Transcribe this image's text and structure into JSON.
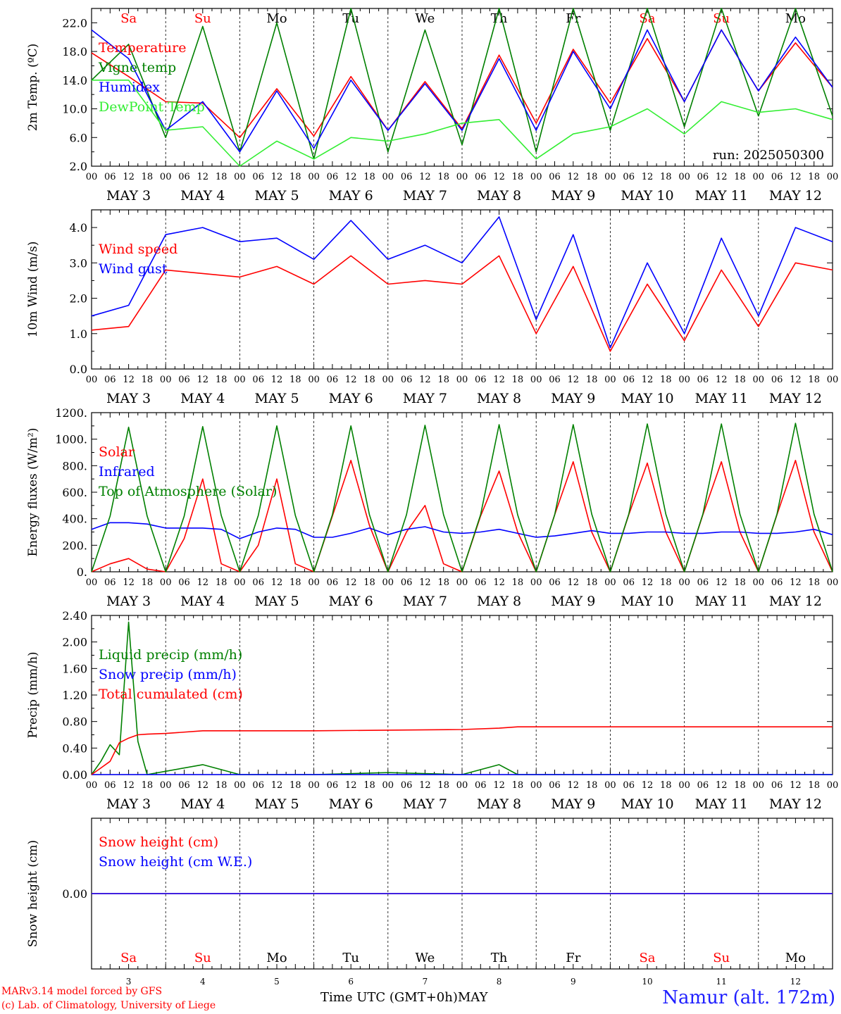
{
  "meta": {
    "credit_line1": "MARv3.14 model forced by GFS",
    "credit_line2": "(c) Lab. of Climatology, University of Liege",
    "x_title": "Time UTC (GMT+0h)",
    "month": "MAY",
    "station": "Namur (alt. 172m)",
    "run": "run: 2025050300"
  },
  "days": {
    "weekdays": [
      "Sa",
      "Su",
      "Mo",
      "Tu",
      "We",
      "Th",
      "Fr",
      "Sa",
      "Su",
      "Mo"
    ],
    "weekday_colors": [
      "#ff0000",
      "#ff0000",
      "#000000",
      "#000000",
      "#000000",
      "#000000",
      "#000000",
      "#ff0000",
      "#ff0000",
      "#000000"
    ],
    "day_labels": [
      "MAY  3",
      "MAY  4",
      "MAY  5",
      "MAY  6",
      "MAY  7",
      "MAY  8",
      "MAY  9",
      "MAY 10",
      "MAY 11",
      "MAY 12"
    ],
    "day_numbers": [
      "3",
      "4",
      "5",
      "6",
      "7",
      "8",
      "9",
      "10",
      "11",
      "12"
    ],
    "hour_ticks": [
      "00",
      "06",
      "12",
      "18"
    ],
    "final_tick": "00"
  },
  "colors": {
    "red": "#ff0000",
    "green": "#008000",
    "blue": "#0000ff",
    "lime": "#33ee33"
  },
  "chart_data": [
    {
      "type": "line",
      "ylabel": "2m Temp. (ºC)",
      "ylim": [
        2,
        24
      ],
      "yticks": [
        "2.0",
        "6.0",
        "10.0",
        "14.0",
        "18.0",
        "22.0"
      ],
      "ytick_values": [
        2,
        6,
        10,
        14,
        18,
        22
      ],
      "show_run": true,
      "show_weekdays": "top",
      "x_hours": [
        0,
        12,
        24,
        36,
        48,
        60,
        72,
        84,
        96,
        108,
        120,
        132,
        144,
        156,
        168,
        180,
        192,
        204,
        216,
        228,
        240
      ],
      "series": [
        {
          "name": "Temperature",
          "color": "#ff0000",
          "values": [
            17.8,
            14.5,
            11.0,
            10.8,
            6.0,
            12.8,
            6.2,
            14.5,
            7.0,
            13.8,
            7.2,
            17.5,
            8.0,
            18.3,
            10.8,
            19.8,
            11.0,
            21.0,
            12.5,
            19.2,
            13.0
          ]
        },
        {
          "name": "Vigne temp",
          "color": "#008000",
          "values": [
            14.0,
            19.0,
            6.0,
            21.5,
            4.0,
            22.0,
            3.0,
            24.0,
            4.0,
            21.0,
            5.0,
            24.0,
            4.0,
            24.0,
            7.0,
            24.0,
            7.5,
            24.0,
            9.0,
            24.0,
            9.0
          ]
        },
        {
          "name": "Humidex",
          "color": "#0000ff",
          "values": [
            21.0,
            17.0,
            7.0,
            11.0,
            4.0,
            12.5,
            4.5,
            14.0,
            7.0,
            13.5,
            7.0,
            17.0,
            7.0,
            18.0,
            10.0,
            21.0,
            11.0,
            21.0,
            12.5,
            20.0,
            13.0
          ]
        },
        {
          "name": "DewPoint Temp",
          "color": "#33ee33",
          "values": [
            14.0,
            14.0,
            7.0,
            7.5,
            2.0,
            5.5,
            3.0,
            6.0,
            5.5,
            6.5,
            8.0,
            8.5,
            3.0,
            6.5,
            7.5,
            10.0,
            6.5,
            11.0,
            9.5,
            10.0,
            8.5
          ]
        }
      ]
    },
    {
      "type": "line",
      "ylabel": "10m Wind (m/s)",
      "ylim": [
        0,
        4.5
      ],
      "yticks": [
        "0.0",
        "1.0",
        "2.0",
        "3.0",
        "4.0"
      ],
      "ytick_values": [
        0,
        1,
        2,
        3,
        4
      ],
      "x_hours": [
        0,
        12,
        24,
        36,
        48,
        60,
        72,
        84,
        96,
        108,
        120,
        132,
        144,
        156,
        168,
        180,
        192,
        204,
        216,
        228,
        240
      ],
      "series": [
        {
          "name": "Wind speed",
          "color": "#ff0000",
          "values": [
            1.1,
            1.2,
            2.8,
            2.7,
            2.6,
            2.9,
            2.4,
            3.2,
            2.4,
            2.5,
            2.4,
            3.2,
            1.0,
            2.9,
            0.5,
            2.4,
            0.8,
            2.8,
            1.2,
            3.0,
            2.8
          ]
        },
        {
          "name": "Wind gust",
          "color": "#0000ff",
          "values": [
            1.5,
            1.8,
            3.8,
            4.0,
            3.6,
            3.7,
            3.1,
            4.2,
            3.1,
            3.5,
            3.0,
            4.3,
            1.4,
            3.8,
            0.6,
            3.0,
            1.0,
            3.7,
            1.5,
            4.0,
            3.6
          ]
        }
      ]
    },
    {
      "type": "line",
      "ylabel": "Energy fluxes (W/m²)",
      "ylim": [
        0,
        1200
      ],
      "yticks": [
        "0.",
        "200.",
        "400.",
        "600.",
        "800.",
        "1000.",
        "1200."
      ],
      "ytick_values": [
        0,
        200,
        400,
        600,
        800,
        1000,
        1200
      ],
      "x_hours": [
        0,
        6,
        12,
        18,
        24,
        30,
        36,
        42,
        48,
        54,
        60,
        66,
        72,
        78,
        84,
        90,
        96,
        102,
        108,
        114,
        120,
        126,
        132,
        138,
        144,
        150,
        156,
        162,
        168,
        174,
        180,
        186,
        192,
        198,
        204,
        210,
        216,
        222,
        228,
        234,
        240
      ],
      "series": [
        {
          "name": "Solar",
          "color": "#ff0000",
          "values": [
            0,
            60,
            100,
            20,
            0,
            250,
            700,
            60,
            0,
            200,
            700,
            60,
            0,
            420,
            840,
            350,
            0,
            300,
            500,
            60,
            0,
            420,
            760,
            300,
            0,
            430,
            830,
            300,
            0,
            430,
            820,
            300,
            0,
            430,
            830,
            300,
            0,
            430,
            840,
            300,
            0
          ]
        },
        {
          "name": "Infrared",
          "color": "#0000ff",
          "values": [
            320,
            370,
            370,
            360,
            330,
            330,
            330,
            320,
            250,
            300,
            330,
            320,
            260,
            260,
            290,
            330,
            280,
            320,
            340,
            300,
            290,
            300,
            320,
            290,
            260,
            270,
            290,
            310,
            290,
            290,
            300,
            300,
            290,
            290,
            300,
            300,
            290,
            290,
            300,
            320,
            280
          ]
        },
        {
          "name": "Top of Atmosphere (Solar)",
          "color": "#008000",
          "values": [
            0,
            420,
            1090,
            420,
            0,
            420,
            1095,
            425,
            0,
            425,
            1100,
            425,
            0,
            430,
            1100,
            430,
            0,
            430,
            1105,
            430,
            0,
            430,
            1110,
            430,
            0,
            430,
            1110,
            435,
            0,
            435,
            1115,
            435,
            0,
            435,
            1115,
            435,
            0,
            435,
            1120,
            435,
            0
          ]
        }
      ]
    },
    {
      "type": "line",
      "ylabel": "Precip (mm/h)",
      "ylim": [
        0,
        2.4
      ],
      "yticks": [
        "0.00",
        "0.40",
        "0.80",
        "1.20",
        "1.60",
        "2.00",
        "2.40"
      ],
      "ytick_values": [
        0,
        0.4,
        0.8,
        1.2,
        1.6,
        2.0,
        2.4
      ],
      "x_hours": [
        0,
        3,
        6,
        9,
        12,
        15,
        18,
        24,
        36,
        48,
        72,
        96,
        120,
        132,
        138,
        144,
        168,
        192,
        216,
        240
      ],
      "series": [
        {
          "name": "Liquid precip (mm/h)",
          "color": "#008000",
          "values": [
            0,
            0.2,
            0.45,
            0.3,
            2.3,
            0.5,
            0,
            0.05,
            0.15,
            0,
            0,
            0.03,
            0,
            0.15,
            0,
            0,
            0,
            0,
            0,
            0
          ]
        },
        {
          "name": "Snow precip (mm/h)",
          "color": "#0000ff",
          "values": [
            0,
            0,
            0,
            0,
            0,
            0,
            0,
            0,
            0,
            0,
            0,
            0,
            0,
            0,
            0,
            0,
            0,
            0,
            0,
            0
          ]
        },
        {
          "name": "Total cumulated (cm)",
          "color": "#ff0000",
          "values": [
            0,
            0.1,
            0.2,
            0.48,
            0.55,
            0.6,
            0.61,
            0.62,
            0.66,
            0.66,
            0.66,
            0.67,
            0.68,
            0.7,
            0.72,
            0.72,
            0.72,
            0.72,
            0.72,
            0.72
          ]
        }
      ]
    },
    {
      "type": "line",
      "ylabel": "Snow height (cm)",
      "ylim": [
        -1,
        1
      ],
      "yticks": [
        "0.00"
      ],
      "ytick_values": [
        0
      ],
      "show_weekdays": "bottom",
      "x_hours": [
        0,
        240
      ],
      "series": [
        {
          "name": "Snow height (cm)",
          "color": "#ff0000",
          "values": [
            0,
            0
          ]
        },
        {
          "name": "Snow height (cm W.E.)",
          "color": "#0000ff",
          "values": [
            0,
            0
          ]
        }
      ]
    }
  ]
}
